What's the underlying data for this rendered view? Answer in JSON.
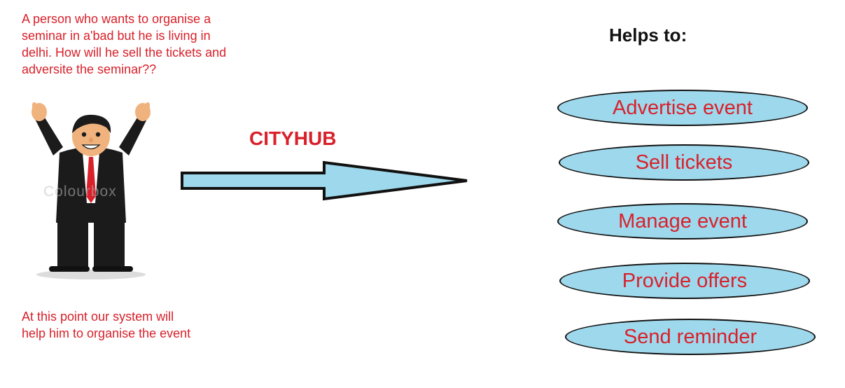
{
  "scenario_text": "A person who wants to organise a seminar in a'bad but he is living in delhi. How will he sell the tickets and adversite the seminar??",
  "solution_text": "At this point our system will help him to organise the event",
  "watermark_text": "Colourbox",
  "brand_label": "CITYHUB",
  "helps_heading": "Helps to:",
  "features": [
    {
      "label": "Advertise event"
    },
    {
      "label": "Sell tickets"
    },
    {
      "label": "Manage event"
    },
    {
      "label": "Provide offers"
    },
    {
      "label": "Send reminder"
    }
  ],
  "colors": {
    "text_red": "#d8212b",
    "oval_fill": "#9ed8ec",
    "arrow_fill": "#9ed8ec",
    "outline": "#111111"
  },
  "icons": {
    "person": "businessman-arms-raised-icon",
    "flow": "right-arrow-icon"
  }
}
